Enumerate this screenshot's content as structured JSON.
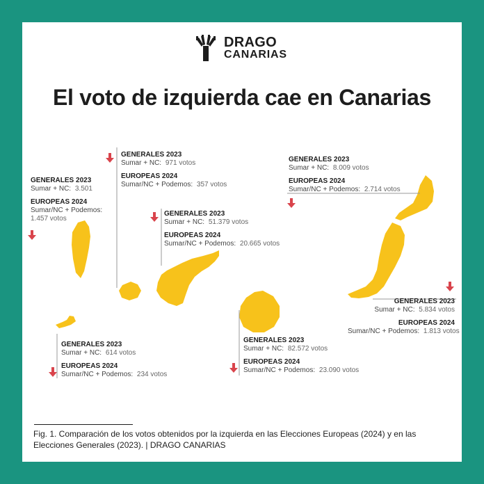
{
  "brand": {
    "line1": "DRAGO",
    "line2": "CANARIAS"
  },
  "title": "El voto de izquierda cae en Canarias",
  "colors": {
    "frame": "#1a9480",
    "island": "#f7c21b",
    "arrow": "#d9444c",
    "text": "#1d1d1d"
  },
  "islands": [
    {
      "id": "la-palma",
      "gen_head": "GENERALES 2023",
      "gen_key": "Sumar + NC:",
      "gen_val": "3.501",
      "eu_head": "EUROPEAS 2024",
      "eu_key1": "Sumar/NC + Podemos:",
      "eu_val": "1.457 votos",
      "trend": "down"
    },
    {
      "id": "la-gomera",
      "gen_head": "GENERALES 2023",
      "gen_key": "Sumar + NC:",
      "gen_val": "971 votos",
      "eu_head": "EUROPEAS 2024",
      "eu_key": "Sumar/NC + Podemos:",
      "eu_val": "357 votos",
      "trend": "down"
    },
    {
      "id": "tenerife",
      "gen_head": "GENERALES 2023",
      "gen_key": "Sumar + NC:",
      "gen_val": "51.379 votos",
      "eu_head": "EUROPEAS 2024",
      "eu_key": "Sumar/NC + Podemos:",
      "eu_val": "20.665 votos",
      "trend": "down"
    },
    {
      "id": "lanzarote",
      "gen_head": "GENERALES 2023",
      "gen_key": "Sumar + NC:",
      "gen_val": "8.009 votos",
      "eu_head": "EUROPEAS 2024",
      "eu_key": "Sumar/NC + Podemos:",
      "eu_val": "2.714 votos",
      "trend": "down"
    },
    {
      "id": "fuerteventura",
      "gen_head": "GENERALES 2023",
      "gen_key": "Sumar + NC:",
      "gen_val": "5.834 votos",
      "eu_head": "EUROPEAS 2024",
      "eu_key": "Sumar/NC + Podemos:",
      "eu_val": "1.813 votos",
      "trend": "down"
    },
    {
      "id": "el-hierro",
      "gen_head": "GENERALES 2023",
      "gen_key": "Sumar + NC:",
      "gen_val": "614 votos",
      "eu_head": "EUROPEAS 2024",
      "eu_key": "Sumar/NC + Podemos:",
      "eu_val": "234 votos",
      "trend": "down"
    },
    {
      "id": "gran-canaria",
      "gen_head": "GENERALES 2023",
      "gen_key": "Sumar + NC:",
      "gen_val": "82.572 votos",
      "eu_head": "EUROPEAS 2024",
      "eu_key": "Sumar/NC + Podemos:",
      "eu_val": "23.090 votos",
      "trend": "down"
    }
  ],
  "caption": "Fig. 1. Comparación de los votos obtenidos por la izquierda en las Elecciones Europeas (2024) y en las Elecciones Generales (2023). | DRAGO CANARIAS"
}
